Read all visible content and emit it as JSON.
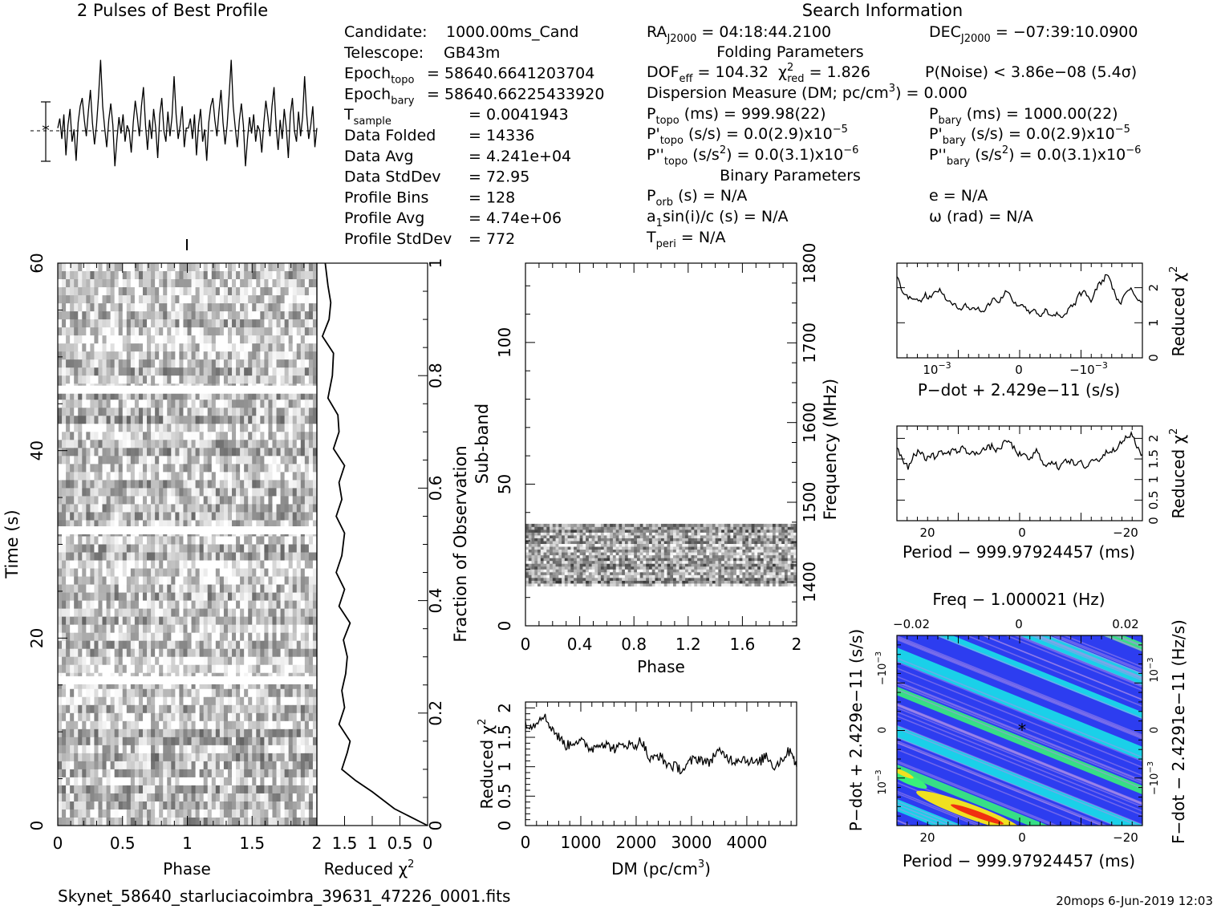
{
  "profile_title": "2 Pulses of Best Profile",
  "search_title": "Search Information",
  "folding_title": "Folding Parameters",
  "binary_title": "Binary Parameters",
  "footer_file": "Skynet_58640_starluciacoimbra_39631_47226_0001.fits",
  "footer_stamp": "20mops  6-Jun-2019 12:03",
  "info_left": [
    {
      "label": "Candidate:",
      "value": "1000.00ms_Cand"
    },
    {
      "label": "Telescope:",
      "value": "GB43m"
    },
    {
      "label": "Epoch",
      "sub": "topo",
      "value": "= 58640.6641203704"
    },
    {
      "label": "Epoch",
      "sub": "bary",
      "value": "= 58640.66225433920"
    },
    {
      "label": "T",
      "sub": "sample",
      "value": "=   0.0041943"
    },
    {
      "label": "Data Folded",
      "value": "=   14336"
    },
    {
      "label": "Data Avg",
      "value": "=   4.241e+04"
    },
    {
      "label": "Data StdDev",
      "value": "=   72.95"
    },
    {
      "label": "Profile Bins",
      "value": "=   128"
    },
    {
      "label": "Profile Avg",
      "value": "=   4.74e+06"
    },
    {
      "label": "Profile StdDev",
      "value": "=   772"
    }
  ],
  "info_mid": {
    "ra": "RA",
    "ra_sub": "J2000",
    "ra_val": " = 04:18:44.2100",
    "dof": "DOF",
    "dof_sub": "eff",
    "dof_val": " = 104.32",
    "chi": "χ",
    "chi_sup": "2",
    "chi_sub": "red",
    "chi_val": " = 1.826",
    "dm_line": "Dispersion Measure (DM; pc/cm",
    "dm_sup": "3",
    "dm_val": ") = 0.000",
    "ptopo": "P",
    "ptopo_sub": "topo",
    "ptopo_val": " (ms) =  999.98(22)",
    "pdtopo": "P'",
    "pdtopo_sub": "topo",
    "pdtopo_val": " (s/s) = 0.0(2.9)x10",
    "pdtopo_exp": "−5",
    "pddtopo": "P''",
    "pddtopo_sub": "topo",
    "pddtopo_val": " (s/s",
    "pddtopo_sup2": "2",
    "pddtopo_val2": ") = 0.0(3.1)x10",
    "pddtopo_exp": "−6",
    "porb": "P",
    "porb_sub": "orb",
    "porb_val": " (s) = N/A",
    "a1": "a",
    "a1_sub": "1",
    "a1_val": "sin(i)/c (s) = N/A",
    "tperi": "T",
    "tperi_sub": "peri",
    "tperi_val": " = N/A"
  },
  "info_right": {
    "dec": "DEC",
    "dec_sub": "J2000",
    "dec_val": " = −07:39:10.0900",
    "pnoise": "P(Noise) < 3.86e−08  (5.4σ)",
    "pbary": "P",
    "pbary_sub": "bary",
    "pbary_val": " (ms) =  1000.00(22)",
    "pdbary": "P'",
    "pdbary_sub": "bary",
    "pdbary_val": " (s/s) = 0.0(2.9)x10",
    "pdbary_exp": "−5",
    "pddbary": "P''",
    "pddbary_sub": "bary",
    "pddbary_val": " (s/s",
    "pddbary_sup2": "2",
    "pddbary_val2": ") = 0.0(3.1)x10",
    "pddbary_exp": "−6",
    "ecc": "e = N/A",
    "omega": "ω (rad) = N/A"
  },
  "colors": {
    "ink": "#000000",
    "background": "#ffffff",
    "pdot_low": "#2d3df0",
    "pdot_mid": "#18e0e8",
    "pdot_high": "#39f07a",
    "pdot_hot": "#f0e020",
    "pdot_peak": "#f03010"
  },
  "chart_data": [
    {
      "id": "profile",
      "type": "line",
      "title": "2 Pulses of Best Profile",
      "xlim": [
        0,
        2
      ],
      "note": "noisy folded profile, two periods",
      "values": [
        0.1,
        0.45,
        -0.3,
        0.6,
        -0.9,
        0.2,
        0.8,
        -0.4,
        0.05,
        -1.1,
        0.3,
        0.9,
        1.2,
        0.4,
        -0.2,
        0.7,
        1.5,
        0.3,
        -0.5,
        0.2,
        1.3,
        2.6,
        0.9,
        0.1,
        -0.6,
        0.4,
        1.0,
        0.2,
        -1.3,
        -0.3,
        0.5,
        -0.1,
        0.6,
        -0.4,
        0.2,
        0.0,
        -0.8,
        0.3,
        1.1,
        0.5,
        -0.2,
        0.9,
        1.6,
        0.2,
        -0.7,
        0.4,
        -0.3,
        0.8,
        0.1,
        -1.0,
        0.6,
        1.2,
        0.0,
        -0.4,
        0.7,
        -0.2,
        0.5,
        2.0,
        0.6,
        -0.3,
        0.2,
        0.9,
        -0.6,
        0.1,
        0.1,
        0.45,
        -0.3,
        0.6,
        -0.9,
        0.2,
        0.8,
        -0.4,
        0.05,
        -1.1,
        0.3,
        0.9,
        1.2,
        0.4,
        -0.2,
        0.7,
        1.5,
        0.3,
        -0.5,
        0.2,
        1.3,
        2.6,
        0.9,
        0.1,
        -0.6,
        0.4,
        1.0,
        0.2,
        -1.3,
        -0.3,
        0.5,
        -0.1,
        0.6,
        -0.4,
        0.2,
        0.0,
        -0.8,
        0.3,
        1.1,
        0.5,
        -0.2,
        0.9,
        1.6,
        0.2,
        -0.7,
        0.4,
        -0.3,
        0.8,
        0.1,
        -1.0,
        0.6,
        1.2,
        0.0,
        -0.4,
        0.7,
        -0.2,
        0.5,
        2.0,
        0.6,
        -0.3,
        0.2,
        0.9,
        -0.6,
        0.1
      ]
    },
    {
      "id": "time_phase",
      "type": "heatmap",
      "xlabel": "Phase",
      "ylabel": "Time (s)",
      "xlim": [
        0,
        2
      ],
      "ylim": [
        0,
        60
      ],
      "x_ticks": [
        "0",
        "0.5",
        "1",
        "1.5"
      ],
      "y_ticks": [
        "0",
        "20",
        "40",
        "60"
      ],
      "gaps_time_s": [
        15.5,
        31.5,
        46.5
      ],
      "colormap": "grayscale"
    },
    {
      "id": "time_chi2",
      "type": "line",
      "xlabel": "Reduced χ2",
      "ylabel": "Fraction of Observation",
      "x_ticks": [
        "2",
        "1.5",
        "1",
        "0.5",
        "0"
      ],
      "y_ticks": [
        "0",
        "0.2",
        "0.4",
        "0.6",
        "0.8",
        "1"
      ],
      "xlim": [
        2,
        0
      ],
      "ylim": [
        0,
        1
      ],
      "x": [
        0.0,
        0.6,
        1.0,
        1.3,
        1.55,
        1.45,
        1.4,
        1.6,
        1.5,
        1.55,
        1.48,
        1.45,
        1.52,
        1.4,
        1.6,
        1.5,
        1.65,
        1.55,
        1.5,
        1.65,
        1.55,
        1.6,
        1.5,
        1.7,
        1.6,
        1.62,
        1.8,
        1.72,
        1.7,
        1.9,
        1.78,
        1.75,
        1.8,
        1.85
      ],
      "y": [
        0.0,
        0.03,
        0.06,
        0.08,
        0.1,
        0.13,
        0.15,
        0.18,
        0.21,
        0.24,
        0.27,
        0.3,
        0.33,
        0.36,
        0.39,
        0.42,
        0.45,
        0.48,
        0.52,
        0.55,
        0.58,
        0.61,
        0.64,
        0.67,
        0.7,
        0.73,
        0.76,
        0.8,
        0.84,
        0.87,
        0.9,
        0.93,
        0.96,
        1.0
      ]
    },
    {
      "id": "subband_phase",
      "type": "heatmap",
      "xlabel": "Phase",
      "ylabel": "Sub-band",
      "y2label": "Frequency (MHz)",
      "xlim": [
        0,
        2
      ],
      "ylim": [
        0,
        128
      ],
      "x_ticks": [
        "0",
        "0.4",
        "0.8",
        "1.2",
        "1.6",
        "2"
      ],
      "y_ticks": [
        "0",
        "50",
        "100"
      ],
      "y2_ticks": [
        "1400",
        "1500",
        "1600",
        "1700",
        "1800"
      ],
      "active_subbands": [
        14,
        35
      ],
      "colormap": "grayscale"
    },
    {
      "id": "dm_chi2",
      "type": "line",
      "xlabel": "DM (pc/cm3)",
      "ylabel": "Reduced χ2",
      "xlim": [
        0,
        4900
      ],
      "ylim": [
        0,
        2.1
      ],
      "x_ticks": [
        "0",
        "1000",
        "2000",
        "3000",
        "4000"
      ],
      "y_ticks": [
        "0",
        "0.5",
        "1",
        "1.5",
        "2"
      ],
      "x": [
        0,
        150,
        300,
        450,
        600,
        750,
        900,
        1050,
        1200,
        1350,
        1500,
        1650,
        1800,
        1950,
        2100,
        2250,
        2400,
        2550,
        2700,
        2850,
        3000,
        3150,
        3300,
        3450,
        3600,
        3750,
        3900,
        4050,
        4200,
        4350,
        4500,
        4650,
        4800,
        4900
      ],
      "y": [
        1.75,
        1.7,
        1.9,
        1.7,
        1.5,
        1.35,
        1.45,
        1.4,
        1.3,
        1.42,
        1.35,
        1.3,
        1.4,
        1.35,
        1.45,
        1.1,
        1.2,
        1.05,
        1.0,
        0.95,
        1.1,
        1.15,
        1.05,
        1.25,
        1.2,
        1.1,
        1.15,
        1.1,
        1.05,
        1.2,
        1.0,
        1.15,
        1.3,
        1.0
      ]
    },
    {
      "id": "pdot_chi2",
      "type": "line",
      "xlabel": "P−dot + 2.429e−11 (s/s)",
      "ylabel": "Reduced χ2",
      "xlim": [
        -0.002,
        0.002
      ],
      "ylim": [
        0,
        2.7
      ],
      "x_ticks": [
        "10−3",
        "0",
        "−10−3"
      ],
      "y_ticks": [
        "0",
        "1",
        "2"
      ],
      "values": [
        2.3,
        1.9,
        1.7,
        1.75,
        1.6,
        1.8,
        1.7,
        1.95,
        1.85,
        1.6,
        1.5,
        1.4,
        1.55,
        1.35,
        1.45,
        1.3,
        1.5,
        1.7,
        1.6,
        1.9,
        1.75,
        1.5,
        1.55,
        1.3,
        1.4,
        1.2,
        1.35,
        1.15,
        1.25,
        1.1,
        1.4,
        1.5,
        1.8,
        1.9,
        1.6,
        2.0,
        2.2,
        2.4,
        1.9,
        1.5,
        1.8,
        2.0,
        1.7,
        1.6
      ]
    },
    {
      "id": "period_chi2",
      "type": "line",
      "xlabel": "Period − 999.97924457 (ms)",
      "ylabel": "Reduced χ2",
      "xlim": [
        25,
        -25
      ],
      "ylim": [
        0,
        2.3
      ],
      "x_ticks": [
        "20",
        "0",
        "−20"
      ],
      "y_ticks": [
        "0",
        "0.5",
        "1",
        "1.5",
        "2"
      ],
      "values": [
        1.8,
        1.5,
        1.3,
        1.6,
        1.7,
        1.5,
        1.6,
        1.55,
        1.7,
        1.6,
        1.75,
        1.65,
        1.8,
        1.6,
        1.65,
        1.7,
        1.75,
        1.8,
        1.7,
        1.85,
        1.95,
        1.75,
        1.6,
        1.55,
        1.5,
        1.7,
        1.45,
        1.35,
        1.4,
        1.3,
        1.5,
        1.45,
        1.35,
        1.4,
        1.3,
        1.5,
        1.45,
        1.6,
        1.7,
        1.75,
        1.85,
        2.0,
        2.1,
        1.8,
        1.6
      ]
    },
    {
      "id": "ppdot_plane",
      "type": "heatmap",
      "xlabel": "Period − 999.97924457 (ms)",
      "ylabel": "P−dot + 2.429e−11 (s/s)",
      "x2label": "Freq − 1.000021 (Hz)",
      "y2label": "F−dot − 2.4291e−11 (Hz/s)",
      "x_ticks": [
        "20",
        "0",
        "−20"
      ],
      "y_ticks": [
        "−10−3",
        "0",
        "10−3"
      ],
      "x2_ticks": [
        "−0.02",
        "0",
        "0.02"
      ],
      "y2_ticks": [
        "10−3",
        "0",
        "−10−3"
      ],
      "best_marker": [
        0,
        0
      ],
      "colormap": "rainbow"
    }
  ]
}
